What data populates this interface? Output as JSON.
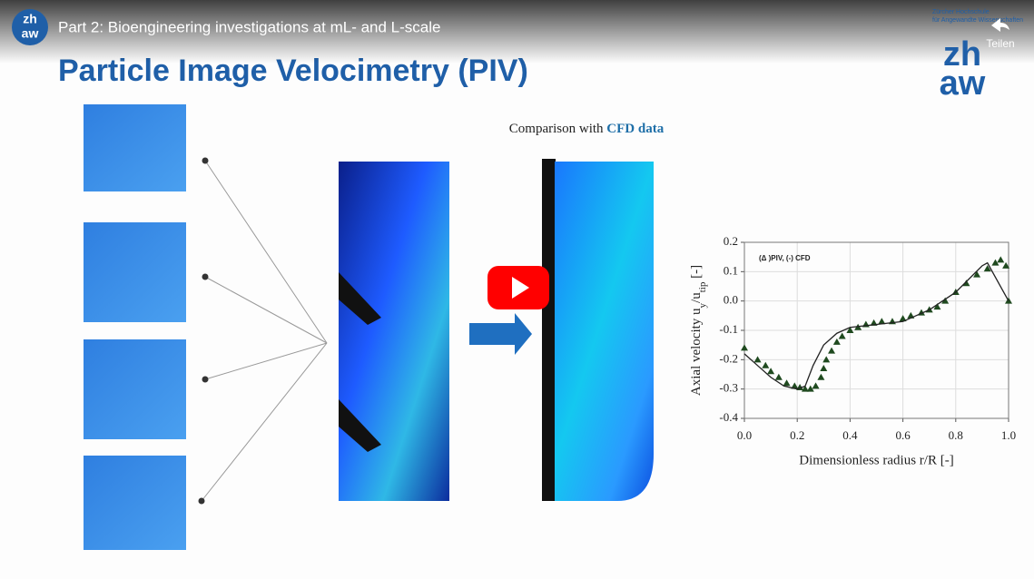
{
  "video": {
    "title": "Part 2: Bioengineering investigations at mL- and L-scale",
    "channel_logo": [
      "zh",
      "aw"
    ],
    "share": "Teilen"
  },
  "slide": {
    "title": "Particle Image Velocimetry (PIV)",
    "institution": [
      "Zürcher Hochschule",
      "für Angewandte Wissenschaften"
    ],
    "logo": [
      "zh",
      "aw"
    ],
    "caption": {
      "prefix": "Comparison with",
      "highlight": "CFD data"
    }
  },
  "chart_data": {
    "type": "scatter",
    "annotation": "(Δ )PIV, (-) CFD",
    "x_label": "Dimensionless radius r/R [-]",
    "y_label": {
      "main": "Axial velocity u",
      "sub1": "y",
      "mid": "/u",
      "sub2": "tip",
      "end": " [-]"
    },
    "xlim": [
      0,
      1
    ],
    "ylim": [
      -0.4,
      0.2
    ],
    "xticks": [
      {
        "value": 0,
        "label": "0.0"
      },
      0.2,
      0.4,
      0.6,
      0.8,
      {
        "value": 1,
        "label": "1.0"
      }
    ],
    "yticks": [
      0.2,
      0.1,
      {
        "value": 0,
        "label": "0.0"
      },
      -0.1,
      -0.2,
      -0.3,
      -0.4
    ],
    "grid": true,
    "series": [
      {
        "name": "PIV",
        "color": "#1f4a1f",
        "marker": "triangle",
        "x": [
          0.0,
          0.05,
          0.08,
          0.1,
          0.13,
          0.16,
          0.19,
          0.21,
          0.23,
          0.25,
          0.27,
          0.29,
          0.3,
          0.31,
          0.33,
          0.35,
          0.37,
          0.4,
          0.43,
          0.46,
          0.49,
          0.52,
          0.56,
          0.6,
          0.63,
          0.67,
          0.7,
          0.73,
          0.76,
          0.8,
          0.84,
          0.88,
          0.92,
          0.95,
          0.97,
          0.99,
          1.0
        ],
        "values": [
          -0.16,
          -0.2,
          -0.22,
          -0.24,
          -0.26,
          -0.28,
          -0.29,
          -0.295,
          -0.3,
          -0.3,
          -0.29,
          -0.26,
          -0.23,
          -0.2,
          -0.17,
          -0.14,
          -0.12,
          -0.1,
          -0.09,
          -0.08,
          -0.075,
          -0.07,
          -0.07,
          -0.06,
          -0.05,
          -0.04,
          -0.03,
          -0.02,
          0.0,
          0.03,
          0.06,
          0.09,
          0.11,
          0.13,
          0.14,
          0.12,
          0.0
        ]
      },
      {
        "name": "CFD",
        "color": "#222222",
        "marker": "line",
        "x": [
          0.0,
          0.05,
          0.1,
          0.15,
          0.2,
          0.23,
          0.26,
          0.3,
          0.35,
          0.4,
          0.5,
          0.6,
          0.7,
          0.8,
          0.9,
          0.92,
          1.0
        ],
        "values": [
          -0.18,
          -0.22,
          -0.26,
          -0.29,
          -0.3,
          -0.29,
          -0.22,
          -0.15,
          -0.11,
          -0.09,
          -0.08,
          -0.07,
          -0.03,
          0.03,
          0.12,
          0.13,
          0.0
        ]
      }
    ]
  }
}
